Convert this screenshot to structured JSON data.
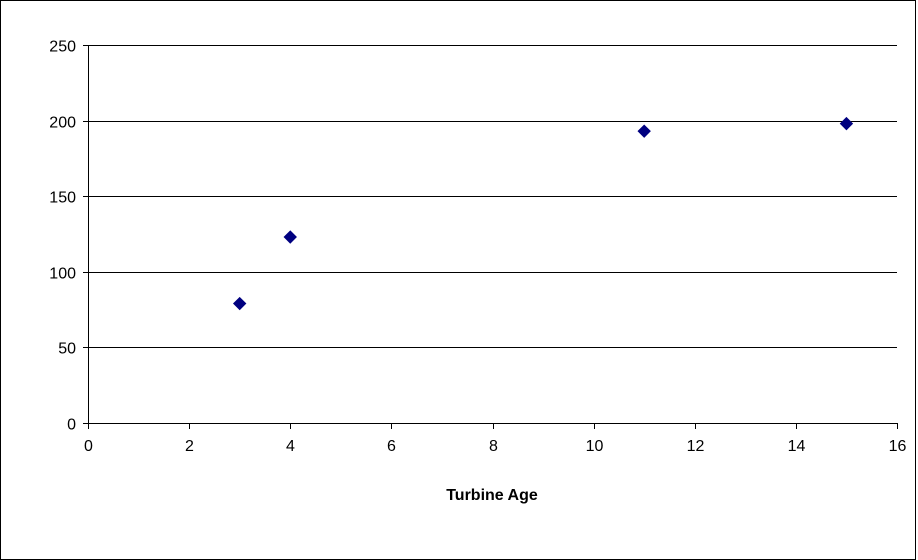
{
  "chart_data": {
    "type": "scatter",
    "title": "",
    "xlabel": "Turbine Age",
    "ylabel": "",
    "xlim": [
      0,
      16
    ],
    "ylim": [
      0,
      250
    ],
    "xticks": [
      0,
      2,
      4,
      6,
      8,
      10,
      12,
      14,
      16
    ],
    "yticks": [
      0,
      50,
      100,
      150,
      200,
      250
    ],
    "grid": "horizontal",
    "legend": "none",
    "series": [
      {
        "color": "#000080",
        "marker": "diamond",
        "points": [
          {
            "x": 3,
            "y": 79
          },
          {
            "x": 4,
            "y": 123
          },
          {
            "x": 11,
            "y": 193
          },
          {
            "x": 15,
            "y": 198
          }
        ]
      }
    ]
  }
}
